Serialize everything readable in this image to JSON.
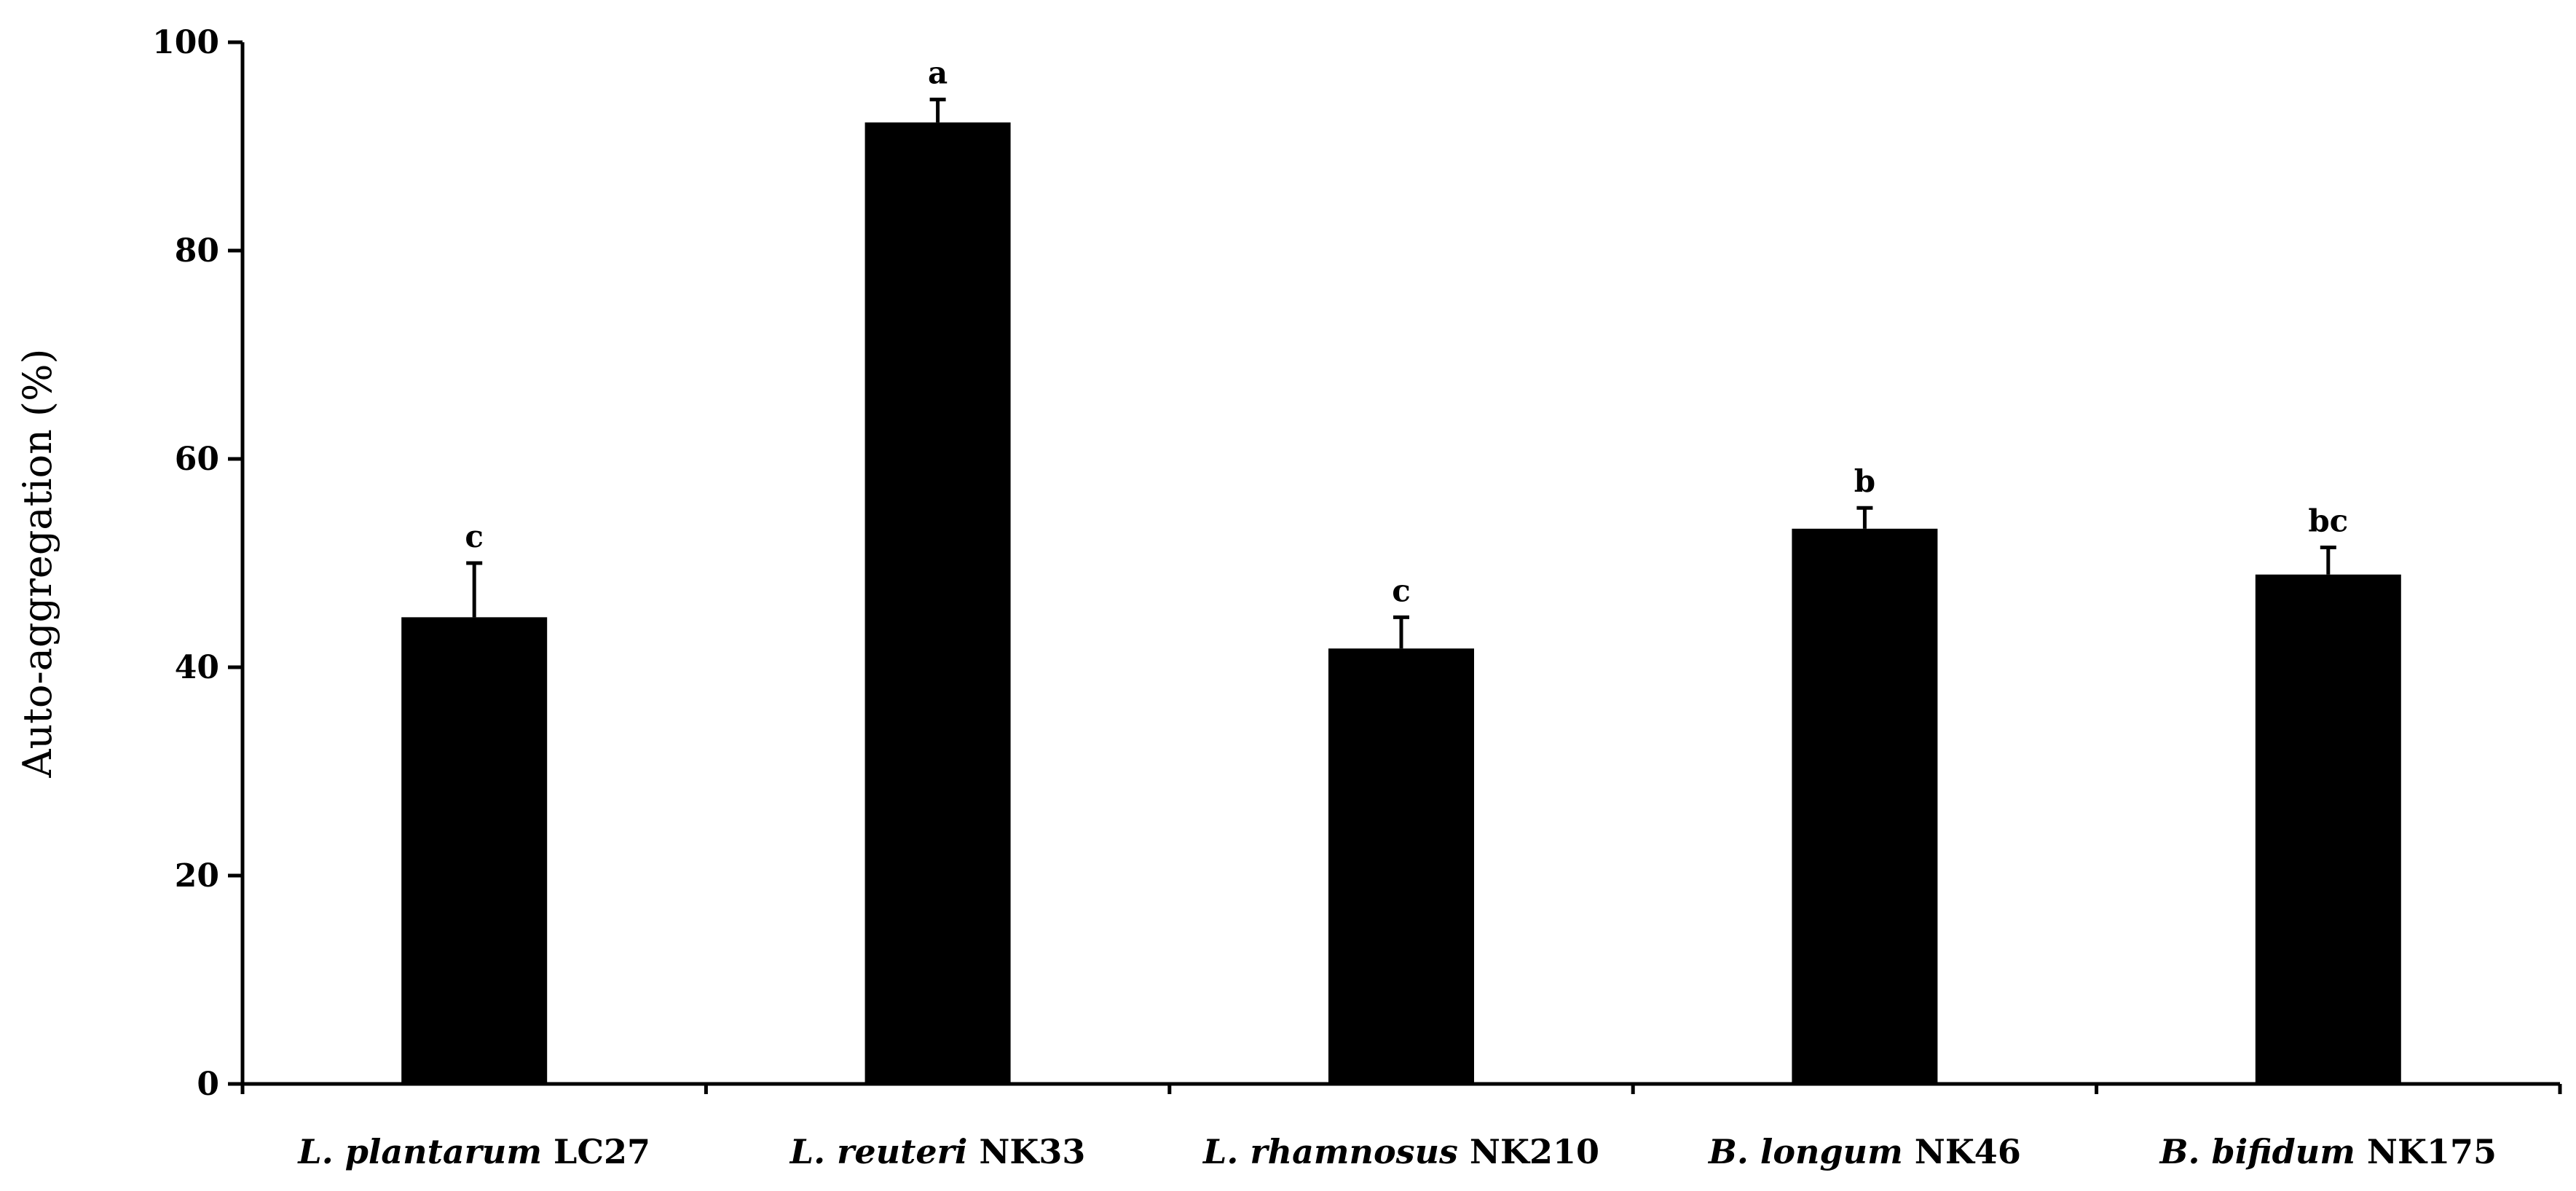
{
  "chart_data": {
    "type": "bar",
    "ylabel": "Auto-aggregation (%)",
    "ylim": [
      0,
      100
    ],
    "yticks": [
      0,
      20,
      40,
      60,
      80,
      100
    ],
    "grid": false,
    "bar_color": "#000000",
    "categories": [
      {
        "italic": "L. plantarum",
        "strain": "LC27"
      },
      {
        "italic": "L. reuteri",
        "strain": "NK33"
      },
      {
        "italic": "L. rhamnosus",
        "strain": "NK210"
      },
      {
        "italic": "B. longum",
        "strain": "NK46"
      },
      {
        "italic": "B. bifidum",
        "strain": "NK175"
      }
    ],
    "values": [
      44.8,
      92.3,
      41.8,
      53.3,
      48.9
    ],
    "errors": [
      5.2,
      2.2,
      3.0,
      2.0,
      2.6
    ],
    "significance": [
      "c",
      "a",
      "c",
      "b",
      "bc"
    ]
  }
}
